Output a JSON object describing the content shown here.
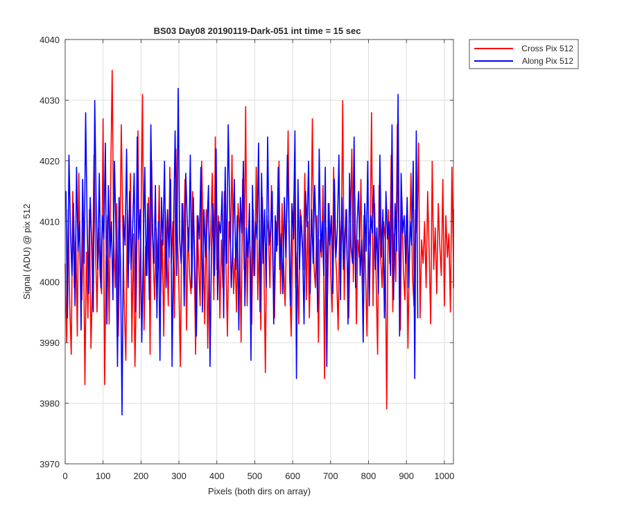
{
  "chart_data": {
    "type": "line",
    "title": "BS03 Day08 20190119-Dark-051 int time = 15 sec",
    "xlabel": "Pixels (both dirs on array)",
    "ylabel": "Signal (ADU) @ pix 512",
    "xlim": [
      0,
      1024
    ],
    "ylim": [
      3970,
      4040
    ],
    "xticks": [
      0,
      100,
      200,
      300,
      400,
      500,
      600,
      700,
      800,
      900,
      1000
    ],
    "yticks": [
      3970,
      3980,
      3990,
      4000,
      4010,
      4020,
      4030,
      4040
    ],
    "grid": true,
    "legend_position": "outside-top-right",
    "series": [
      {
        "name": "Cross Pix 512",
        "color": "#ff0000",
        "x_start": 0,
        "x_step": 4,
        "values": [
          4003,
          3990,
          4012,
          3996,
          3988,
          4015,
          3999,
          4008,
          3991,
          4018,
          4002,
          3997,
          4010,
          3983,
          4005,
          3994,
          4012,
          3989,
          4000,
          4021,
          4006,
          3995,
          4009,
          4001,
          3998,
          4027,
          3983,
          4004,
          4011,
          3993,
          4017,
          4035,
          4007,
          3999,
          4013,
          3991,
          4005,
          4026,
          4009,
          3996,
          3987,
          4012,
          4003,
          4018,
          3990,
          4008,
          3986,
          4000,
          4025,
          3994,
          4011,
          4031,
          3992,
          4006,
          4001,
          4014,
          3988,
          4020,
          4004,
          3997,
          4009,
          4002,
          4016,
          3998,
          4007,
          3991,
          4012,
          4005,
          3996,
          4019,
          4003,
          4010,
          3994,
          4022,
          4008,
          3999,
          3986,
          4013,
          4004,
          4017,
          3992,
          4009,
          4001,
          3998,
          4015,
          4006,
          3988,
          4011,
          4003,
          3996,
          4020,
          4007,
          3993,
          4012,
          3989,
          4005,
          4009,
          4018,
          3997,
          4024,
          4002,
          4011,
          3994,
          4007,
          3999,
          4015,
          4003,
          3991,
          4010,
          4006,
          4021,
          3998,
          4004,
          3995,
          4013,
          4008,
          3990,
          4017,
          4002,
          4029,
          3996,
          4009,
          4005,
          3993,
          4012,
          4001,
          4019,
          3997,
          4007,
          3992,
          4014,
          4004,
          3985,
          4011,
          4008,
          3999,
          4016,
          4002,
          3994,
          4010,
          4006,
          4020,
          3998,
          4013,
          4003,
          3996,
          4009,
          4025,
          4001,
          3991,
          4007,
          4015,
          3999,
          4005,
          3993,
          4012,
          4008,
          4002,
          4018,
          3997,
          4010,
          3994,
          4006,
          4027,
          4003,
          3999,
          4011,
          3990,
          4007,
          4004,
          4016,
          3984,
          4009,
          3998,
          4013,
          4002,
          3995,
          4019,
          4006,
          4001,
          3992,
          4010,
          4005,
          4030,
          3997,
          4012,
          4003,
          3994,
          4008,
          4022,
          4000,
          4014,
          3993,
          4007,
          4004,
          4017,
          3998,
          4011,
          4002,
          3991,
          4009,
          4006,
          4028,
          3996,
          4013,
          4001,
          3988,
          4016,
          4004,
          3999,
          4010,
          4007,
          3979,
          4012,
          4003,
          4021,
          3995,
          4008,
          4000,
          4026,
          4006,
          3992,
          4014,
          4002,
          3997,
          4011,
          3989,
          4005,
          4018,
          4001,
          3996,
          4012,
          4008,
          4023,
          3994,
          4007,
          4003,
          4010,
          3999,
          4015,
          4005,
          3993,
          4020,
          4002,
          4009,
          3998,
          4013,
          4006,
          4001,
          4017,
          3996,
          4011,
          4004,
          4008,
          3995,
          4019,
          4003,
          4012,
          3999,
          4007
        ]
      },
      {
        "name": "Along Pix 512",
        "color": "#0000ff",
        "x_start": 2,
        "x_step": 4,
        "values": [
          4015,
          3994,
          4021,
          4008,
          4001,
          4013,
          3996,
          4019,
          4005,
          4010,
          3992,
          4017,
          4003,
          4028,
          4009,
          3998,
          4014,
          4006,
          3995,
          4030,
          4012,
          4002,
          4018,
          3999,
          4011,
          4007,
          4023,
          3993,
          4016,
          4004,
          4010,
          3997,
          4020,
          4008,
          3986,
          4014,
          4003,
          3978,
          4011,
          4006,
          4022,
          3999,
          4015,
          4002,
          4009,
          4018,
          3995,
          4024,
          4007,
          4012,
          3990,
          4005,
          4019,
          4001,
          4013,
          3997,
          4026,
          4008,
          4003,
          4016,
          3994,
          4010,
          3987,
          4014,
          4006,
          4020,
          3999,
          4012,
          4004,
          4017,
          3986,
          4009,
          4025,
          4001,
          4032,
          4007,
          4003,
          4013,
          3996,
          4018,
          4010,
          4005,
          4021,
          3999,
          4014,
          4002,
          3991,
          4011,
          4007,
          4019,
          3995,
          4012,
          4004,
          4009,
          4016,
          3986,
          4006,
          4013,
          4001,
          4022,
          3997,
          4010,
          4008,
          4015,
          3994,
          4019,
          4003,
          4026,
          4012,
          3999,
          4006,
          4017,
          4002,
          4011,
          3992,
          4014,
          4008,
          4020,
          3996,
          4009,
          4004,
          4013,
          3987,
          4016,
          4001,
          4010,
          4007,
          4023,
          3995,
          4018,
          4003,
          4012,
          3999,
          4024,
          4006,
          4009,
          4015,
          3993,
          4011,
          4005,
          4019,
          4002,
          4008,
          3998,
          4014,
          4004,
          4021,
          4010,
          3996,
          4013,
          4007,
          4025,
          3984,
          4017,
          4002,
          4011,
          4006,
          3993,
          4015,
          4009,
          4020,
          3998,
          4012,
          4003,
          4016,
          4008,
          3995,
          4022,
          4005,
          4010,
          4001,
          4019,
          3986,
          4013,
          4006,
          4011,
          3998,
          4017,
          4004,
          4009,
          4021,
          3997,
          4014,
          4002,
          4008,
          4012,
          3993,
          4018,
          4006,
          4003,
          4024,
          3999,
          4010,
          4015,
          4001,
          4007,
          3990,
          4013,
          4005,
          4020,
          3996,
          4011,
          4008,
          4016,
          4002,
          4009,
          3998,
          4021,
          4004,
          4012,
          3994,
          4015,
          4007,
          4010,
          4001,
          4026,
          3997,
          4013,
          4005,
          4031,
          3991,
          4018,
          4008,
          4011,
          4003,
          4014,
          3999,
          4010,
          4006,
          4020,
          3984,
          4025,
          3994
        ]
      }
    ]
  }
}
